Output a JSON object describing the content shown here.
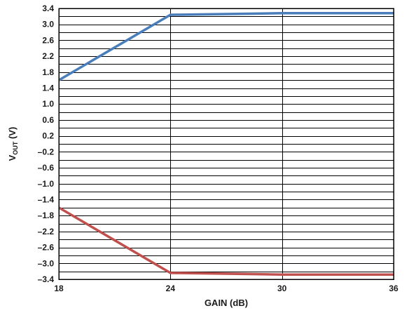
{
  "chart_data": {
    "type": "line",
    "title": "",
    "xlabel": "GAIN (dB)",
    "ylabel": {
      "main": "V",
      "subscript": "OUT",
      "suffix": " (V)"
    },
    "xlim": [
      18,
      36
    ],
    "ylim": [
      -3.4,
      3.4
    ],
    "x_ticks": [
      "18",
      "24",
      "30",
      "36"
    ],
    "y_ticks": [
      "3.4",
      "3.0",
      "2.6",
      "2.2",
      "1.8",
      "1.4",
      "1.0",
      "0.6",
      "0.2",
      "–0.2",
      "–0.6",
      "–1.0",
      "–1.4",
      "–1.8",
      "–2.2",
      "–2.6",
      "–3.0",
      "–3.4"
    ],
    "y_grid_step": 0.2,
    "x_grid": [
      18,
      24,
      30,
      36
    ],
    "grid": true,
    "legend": "none",
    "series": [
      {
        "color": "#4a7ebb",
        "x": [
          18,
          24,
          30,
          36
        ],
        "y": [
          1.6,
          3.24,
          3.28,
          3.28
        ]
      },
      {
        "color": "#c0504d",
        "x": [
          18,
          24,
          30,
          36
        ],
        "y": [
          -1.6,
          -3.24,
          -3.28,
          -3.28
        ]
      }
    ]
  }
}
